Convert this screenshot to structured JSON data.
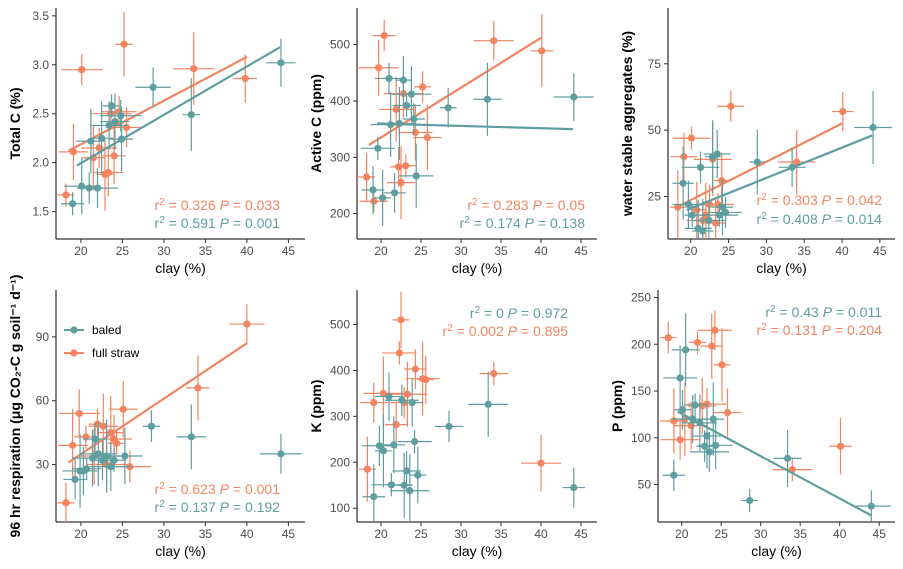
{
  "colors": {
    "baled": "#5f9ea0",
    "full_straw": "#f4845f"
  },
  "legend": {
    "items": [
      "baled",
      "full straw"
    ],
    "placement": "top-left of panel 4"
  },
  "chart_data": [
    {
      "type": "scatter",
      "ylabel": "Total C (%)",
      "xlabel": "clay (%)",
      "xlim": [
        17,
        47
      ],
      "ylim": [
        1.22,
        3.58
      ],
      "xticks": [
        20,
        25,
        30,
        35,
        40,
        45
      ],
      "yticks": [
        1.5,
        2.0,
        2.5,
        3.0,
        3.5
      ],
      "ytick_labels": [
        "1.5",
        "2.0",
        "2.5",
        "3.0",
        "3.5"
      ],
      "annotations": [
        {
          "series": "full straw",
          "r2": "0.326",
          "P": "0.033"
        },
        {
          "series": "baled",
          "r2": "0.591",
          "P": "0.001"
        }
      ],
      "series": [
        {
          "name": "full straw",
          "points": [
            [
              18.2,
              1.67
            ],
            [
              19.1,
              2.11
            ],
            [
              20.1,
              2.95
            ],
            [
              21.5,
              2.05
            ],
            [
              22.2,
              2.15
            ],
            [
              22.9,
              1.88
            ],
            [
              23.3,
              1.9
            ],
            [
              23.6,
              2.5
            ],
            [
              24.0,
              2.07
            ],
            [
              24.6,
              2.52
            ],
            [
              25.2,
              3.21
            ],
            [
              25.5,
              2.36
            ],
            [
              33.6,
              2.96
            ],
            [
              39.8,
              2.86
            ]
          ],
          "fit": [
            [
              18.5,
              2.12
            ],
            [
              40,
              3.08
            ]
          ]
        },
        {
          "name": "baled",
          "points": [
            [
              19.0,
              1.58
            ],
            [
              20.1,
              1.76
            ],
            [
              21.0,
              1.74
            ],
            [
              21.2,
              2.22
            ],
            [
              22.0,
              1.74
            ],
            [
              22.5,
              2.25
            ],
            [
              23.4,
              2.38
            ],
            [
              23.7,
              2.58
            ],
            [
              24.1,
              2.42
            ],
            [
              24.8,
              2.48
            ],
            [
              24.9,
              2.24
            ],
            [
              28.7,
              2.77
            ],
            [
              33.3,
              2.49
            ],
            [
              44.1,
              3.02
            ]
          ],
          "fit": [
            [
              19.5,
              1.97
            ],
            [
              44,
              3.18
            ]
          ]
        }
      ]
    },
    {
      "type": "scatter",
      "ylabel": "Active C (ppm)",
      "xlabel": "clay (%)",
      "xlim": [
        17,
        47
      ],
      "ylim": [
        155,
        565
      ],
      "xticks": [
        20,
        25,
        30,
        35,
        40,
        45
      ],
      "yticks": [
        200,
        300,
        400,
        500
      ],
      "ytick_labels": [
        "200",
        "300",
        "400",
        "500"
      ],
      "annotations": [
        {
          "series": "full straw",
          "r2": "0.283",
          "P": "0.05"
        },
        {
          "series": "baled",
          "r2": "0.174",
          "P": "0.138"
        }
      ],
      "series": [
        {
          "name": "full straw",
          "points": [
            [
              18.2,
              265
            ],
            [
              19.1,
              222
            ],
            [
              19.7,
              459
            ],
            [
              20.4,
              516
            ],
            [
              21.9,
              385
            ],
            [
              22.2,
              283
            ],
            [
              22.5,
              255
            ],
            [
              22.8,
              413
            ],
            [
              23.1,
              285
            ],
            [
              24.3,
              344
            ],
            [
              25.2,
              425
            ],
            [
              25.8,
              335
            ],
            [
              34.1,
              507
            ],
            [
              40.1,
              489
            ]
          ],
          "fit": [
            [
              18.5,
              322
            ],
            [
              40,
              512
            ]
          ]
        },
        {
          "name": "baled",
          "points": [
            [
              19.0,
              242
            ],
            [
              19.6,
              316
            ],
            [
              20.2,
              228
            ],
            [
              21.0,
              440
            ],
            [
              21.2,
              358
            ],
            [
              21.7,
              237
            ],
            [
              22.3,
              360
            ],
            [
              22.8,
              437
            ],
            [
              23.2,
              392
            ],
            [
              23.8,
              412
            ],
            [
              24.1,
              368
            ],
            [
              24.4,
              267
            ],
            [
              28.4,
              388
            ],
            [
              33.3,
              403
            ],
            [
              44.1,
              407
            ]
          ],
          "fit": [
            [
              19.5,
              360
            ],
            [
              44,
              350
            ]
          ]
        }
      ]
    },
    {
      "type": "scatter",
      "ylabel": "water stable aggregates (%)",
      "xlabel": "clay (%)",
      "xlim": [
        17,
        47
      ],
      "ylim": [
        9,
        96
      ],
      "xticks": [
        20,
        25,
        30,
        35,
        40,
        45
      ],
      "yticks": [
        25,
        50,
        75
      ],
      "ytick_labels": [
        "25",
        "50",
        "75"
      ],
      "annotations": [
        {
          "series": "full straw",
          "r2": "0.303",
          "P": "0.042"
        },
        {
          "series": "baled",
          "r2": "0.408",
          "P": "0.014"
        }
      ],
      "series": [
        {
          "name": "full straw",
          "points": [
            [
              18.3,
              21
            ],
            [
              19.1,
              40
            ],
            [
              20.1,
              47
            ],
            [
              20.8,
              20
            ],
            [
              21.6,
              16
            ],
            [
              22.0,
              18
            ],
            [
              22.5,
              22
            ],
            [
              22.9,
              39
            ],
            [
              23.3,
              15
            ],
            [
              23.6,
              22
            ],
            [
              24.1,
              31
            ],
            [
              25.3,
              59
            ],
            [
              34.0,
              38
            ],
            [
              40.1,
              57
            ]
          ],
          "fit": [
            [
              18.5,
              21.5
            ],
            [
              40,
              52.5
            ]
          ]
        },
        {
          "name": "baled",
          "points": [
            [
              19.0,
              30
            ],
            [
              19.7,
              22
            ],
            [
              20.2,
              18
            ],
            [
              21.0,
              13
            ],
            [
              21.3,
              36
            ],
            [
              21.6,
              12
            ],
            [
              22.4,
              16
            ],
            [
              22.9,
              40
            ],
            [
              23.5,
              41
            ],
            [
              23.8,
              18
            ],
            [
              24.2,
              21
            ],
            [
              24.6,
              19
            ],
            [
              28.8,
              38
            ],
            [
              33.4,
              36
            ],
            [
              44.1,
              51
            ]
          ],
          "fit": [
            [
              19.5,
              20
            ],
            [
              44,
              48
            ]
          ]
        }
      ]
    },
    {
      "type": "scatter",
      "ylabel": "96 hr respiration (μg CO₂-C g soil⁻¹ d⁻¹)",
      "xlabel": "clay (%)",
      "xlim": [
        17,
        47
      ],
      "ylim": [
        3,
        112
      ],
      "xticks": [
        20,
        25,
        30,
        35,
        40,
        45
      ],
      "yticks": [
        30,
        60,
        90
      ],
      "ytick_labels": [
        "30",
        "60",
        "90"
      ],
      "annotations": [
        {
          "series": "full straw",
          "r2": "0.623",
          "P": "0.001"
        },
        {
          "series": "baled",
          "r2": "0.137",
          "P": "0.192"
        }
      ],
      "series": [
        {
          "name": "full straw",
          "points": [
            [
              18.2,
              12
            ],
            [
              19.0,
              39
            ],
            [
              19.8,
              54
            ],
            [
              20.6,
              43
            ],
            [
              21.6,
              34
            ],
            [
              22.0,
              49
            ],
            [
              22.7,
              48
            ],
            [
              23.1,
              30
            ],
            [
              23.6,
              45
            ],
            [
              24.0,
              42
            ],
            [
              24.3,
              40
            ],
            [
              25.1,
              56
            ],
            [
              25.9,
              29
            ],
            [
              34.1,
              66
            ],
            [
              40.0,
              96
            ]
          ],
          "fit": [
            [
              18.5,
              31
            ],
            [
              40,
              87
            ]
          ]
        },
        {
          "name": "baled",
          "points": [
            [
              19.3,
              23
            ],
            [
              19.9,
              27
            ],
            [
              20.3,
              27
            ],
            [
              20.7,
              28
            ],
            [
              21.4,
              33
            ],
            [
              21.7,
              42
            ],
            [
              22.1,
              35
            ],
            [
              22.6,
              32
            ],
            [
              23.1,
              34
            ],
            [
              23.6,
              29
            ],
            [
              24.0,
              32
            ],
            [
              25.3,
              34
            ],
            [
              28.5,
              48
            ],
            [
              33.3,
              43
            ],
            [
              44.1,
              35
            ]
          ],
          "fit": []
        }
      ]
    },
    {
      "type": "scatter",
      "ylabel": "K (ppm)",
      "xlabel": "clay (%)",
      "xlim": [
        17,
        47
      ],
      "ylim": [
        70,
        575
      ],
      "xticks": [
        20,
        25,
        30,
        35,
        40,
        45
      ],
      "yticks": [
        100,
        200,
        300,
        400,
        500
      ],
      "ytick_labels": [
        "100",
        "200",
        "300",
        "400",
        "500"
      ],
      "annotations": [
        {
          "series": "baled",
          "r2": "0",
          "P": "0.972"
        },
        {
          "series": "full straw",
          "r2": "0.002",
          "P": "0.895"
        }
      ],
      "series": [
        {
          "name": "full straw",
          "points": [
            [
              18.3,
              185
            ],
            [
              19.1,
              330
            ],
            [
              20.3,
              350
            ],
            [
              21.9,
              282
            ],
            [
              22.3,
              438
            ],
            [
              22.5,
              510
            ],
            [
              22.9,
              330
            ],
            [
              23.3,
              348
            ],
            [
              24.3,
              403
            ],
            [
              25.2,
              382
            ],
            [
              25.6,
              380
            ],
            [
              34.1,
              393
            ],
            [
              40.0,
              198
            ]
          ],
          "fit": []
        },
        {
          "name": "baled",
          "points": [
            [
              19.1,
              125
            ],
            [
              19.8,
              236
            ],
            [
              20.3,
              225
            ],
            [
              21.0,
              343
            ],
            [
              21.3,
              151
            ],
            [
              21.6,
              238
            ],
            [
              22.6,
              335
            ],
            [
              22.9,
              150
            ],
            [
              23.2,
              181
            ],
            [
              23.6,
              138
            ],
            [
              23.9,
              330
            ],
            [
              24.2,
              245
            ],
            [
              24.6,
              172
            ],
            [
              28.5,
              278
            ],
            [
              33.4,
              326
            ],
            [
              44.1,
              145
            ]
          ],
          "fit": []
        }
      ]
    },
    {
      "type": "scatter",
      "ylabel": "P (ppm)",
      "xlabel": "clay (%)",
      "xlim": [
        17,
        47
      ],
      "ylim": [
        10,
        258
      ],
      "xticks": [
        20,
        25,
        30,
        35,
        40,
        45
      ],
      "yticks": [
        50,
        100,
        150,
        200,
        250
      ],
      "ytick_labels": [
        "50",
        "100",
        "150",
        "200",
        "250"
      ],
      "annotations": [
        {
          "series": "baled",
          "r2": "0.43",
          "P": "0.011"
        },
        {
          "series": "full straw",
          "r2": "0.131",
          "P": "0.204"
        }
      ],
      "series": [
        {
          "name": "full straw",
          "points": [
            [
              18.3,
              207
            ],
            [
              19.0,
              118
            ],
            [
              19.8,
              98
            ],
            [
              20.4,
              120
            ],
            [
              21.2,
              113
            ],
            [
              22.0,
              202
            ],
            [
              22.6,
              134
            ],
            [
              23.2,
              136
            ],
            [
              23.8,
              198
            ],
            [
              24.2,
              215
            ],
            [
              25.1,
              178
            ],
            [
              25.8,
              127
            ],
            [
              34.0,
              66
            ],
            [
              40.1,
              91
            ]
          ],
          "fit": []
        },
        {
          "name": "baled",
          "points": [
            [
              19.0,
              60
            ],
            [
              19.8,
              164
            ],
            [
              20.1,
              130
            ],
            [
              20.5,
              194
            ],
            [
              21.4,
              120
            ],
            [
              21.7,
              135
            ],
            [
              22.3,
              116
            ],
            [
              22.9,
              91
            ],
            [
              23.2,
              102
            ],
            [
              23.5,
              85
            ],
            [
              24.0,
              120
            ],
            [
              24.3,
              92
            ],
            [
              28.6,
              33
            ],
            [
              33.4,
              78
            ],
            [
              44.0,
              27
            ]
          ],
          "fit": [
            [
              19.5,
              128
            ],
            [
              44,
              17
            ]
          ]
        }
      ]
    }
  ]
}
